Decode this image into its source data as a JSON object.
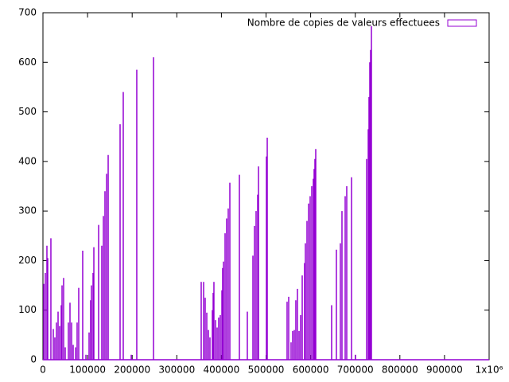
{
  "chart_data": {
    "type": "impulse",
    "legend_position": "top-right",
    "color": "#9400d3",
    "series": [
      {
        "name": "Nombre de copies de valeurs effectuees",
        "color": "#9400d3",
        "x": [
          1800,
          5300,
          8900,
          10700,
          17800,
          23200,
          26700,
          30300,
          33900,
          37400,
          41000,
          42800,
          46300,
          49900,
          57000,
          60600,
          64200,
          67700,
          73100,
          76600,
          80200,
          89100,
          96300,
          103400,
          106900,
          108700,
          112300,
          114100,
          124800,
          131900,
          135500,
          139000,
          142600,
          146200,
          172900,
          180000,
          197900,
          210300,
          247800,
          354700,
          360100,
          363600,
          367200,
          370800,
          374300,
          379700,
          381500,
          383200,
          386800,
          390400,
          393900,
          397500,
          401100,
          402800,
          404600,
          408200,
          411700,
          415300,
          418900,
          440300,
          458100,
          470600,
          474100,
          477700,
          481300,
          483100,
          500900,
          502700,
          547200,
          550800,
          556100,
          559700,
          563300,
          566800,
          570400,
          574000,
          577500,
          581100,
          586400,
          588200,
          591800,
          595400,
          598900,
          602500,
          606000,
          607800,
          609600,
          611400,
          647000,
          657700,
          666600,
          670200,
          677400,
          680900,
          691600,
          700500,
          725500,
          729100,
          730800,
          732600,
          734400,
          736200
        ],
        "values": [
          153,
          175,
          230,
          205,
          245,
          62,
          45,
          75,
          97,
          68,
          110,
          150,
          165,
          25,
          75,
          115,
          75,
          30,
          25,
          75,
          145,
          220,
          10,
          55,
          120,
          150,
          175,
          227,
          272,
          230,
          290,
          340,
          375,
          413,
          475,
          540,
          10,
          585,
          610,
          157,
          157,
          125,
          95,
          60,
          45,
          100,
          135,
          157,
          80,
          65,
          85,
          90,
          140,
          185,
          198,
          255,
          285,
          305,
          357,
          373,
          97,
          210,
          270,
          300,
          333,
          390,
          410,
          448,
          117,
          127,
          35,
          58,
          60,
          120,
          143,
          58,
          90,
          170,
          195,
          235,
          280,
          315,
          330,
          350,
          365,
          385,
          405,
          425,
          110,
          222,
          235,
          300,
          330,
          350,
          368,
          10,
          405,
          465,
          530,
          600,
          625,
          673
        ]
      }
    ],
    "xlim": [
      0,
      1000000
    ],
    "ylim": [
      0,
      700
    ],
    "xticks": [
      0,
      100000,
      200000,
      300000,
      400000,
      500000,
      600000,
      700000,
      800000,
      900000,
      {
        "value": 1000000,
        "label": "1x10⁶"
      }
    ],
    "yticks": [
      0,
      100,
      200,
      300,
      400,
      500,
      600,
      700
    ]
  }
}
